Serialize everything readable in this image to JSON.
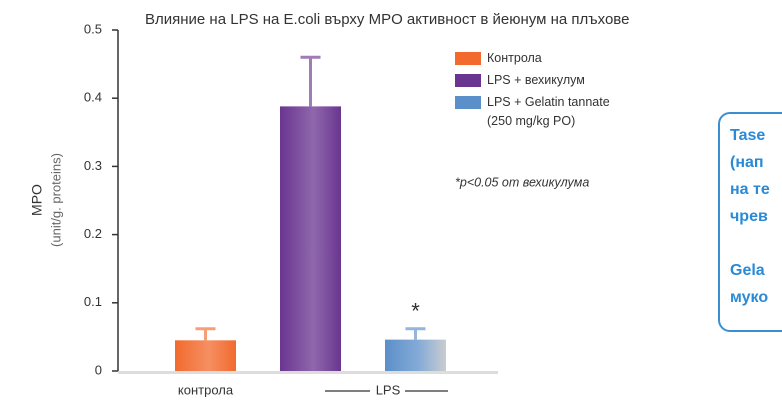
{
  "chart_data": {
    "type": "bar",
    "title": "Влияние на LPS на E.coli върху  MPO активност в йеюнум на плъхове",
    "ylabel": "MPO",
    "ylabel_unit": "(unit/g. proteins)",
    "ylim": [
      0,
      0.5
    ],
    "yticks": [
      0,
      0.1,
      0.2,
      0.3,
      0.4,
      0.5
    ],
    "x_labels": [
      "контрола",
      "LPS"
    ],
    "series": [
      {
        "name": "Контрола",
        "color": "#f26a2e",
        "values": [
          0.045
        ],
        "errors": [
          0.017
        ]
      },
      {
        "name": "LPS + вехикулум",
        "color": "#6a3590",
        "values": [
          0.388
        ],
        "errors": [
          0.072
        ]
      },
      {
        "name": "LPS + Gelatin tannate (250 mg/kg PO)",
        "color": "#5b8fc9",
        "values": [
          0.046
        ],
        "errors": [
          0.016
        ]
      }
    ],
    "significance_marker": "*",
    "annotation": "*p<0.05 от вехикулума"
  },
  "side_box": {
    "lines": [
      "Tase",
      "(нап",
      "на те",
      "чрев",
      "Gela",
      "муко"
    ]
  }
}
